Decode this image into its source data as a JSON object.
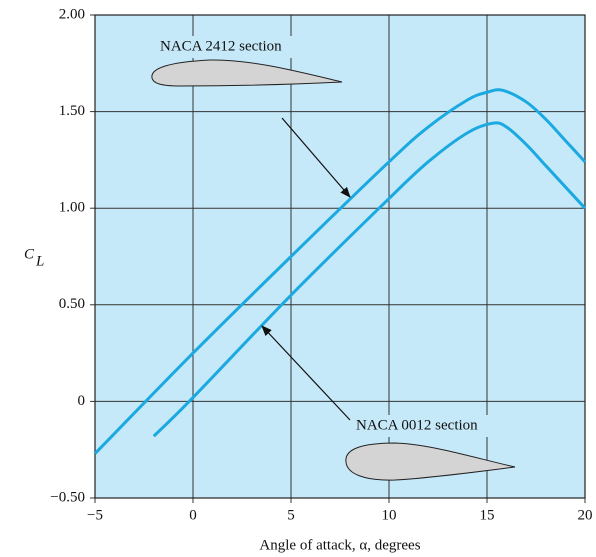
{
  "chart_data": {
    "type": "line",
    "x_label": "Angle of attack, α, degrees",
    "y_label": "C",
    "y_label_sub": "L",
    "xlim": [
      -5,
      20
    ],
    "xticks": [
      {
        "value": -5,
        "label": "−5"
      },
      0,
      5,
      10,
      15,
      20
    ],
    "ylim": [
      -0.5,
      2.0
    ],
    "yticks": [
      {
        "value": -0.5,
        "label": "−0.50"
      },
      0,
      {
        "value": 0.5,
        "label": "0.50"
      },
      {
        "value": 1.0,
        "label": "1.00"
      },
      {
        "value": 1.5,
        "label": "1.50"
      },
      {
        "value": 2.0,
        "label": "2.00"
      }
    ],
    "grid": true,
    "background": "#c6e9f9",
    "series": [
      {
        "name": "NACA 2412 section",
        "color": "#1aa9e0",
        "x": [
          -5,
          0,
          5,
          10,
          12,
          14,
          15,
          15.8,
          17,
          18,
          19,
          20
        ],
        "values": [
          -0.27,
          0.25,
          0.75,
          1.24,
          1.42,
          1.56,
          1.6,
          1.61,
          1.55,
          1.46,
          1.35,
          1.24
        ]
      },
      {
        "name": "NACA 0012 section",
        "color": "#1aa9e0",
        "x": [
          -2,
          0,
          5,
          10,
          12,
          14,
          15.3,
          16,
          17,
          18,
          19,
          20
        ],
        "values": [
          -0.18,
          0.02,
          0.55,
          1.05,
          1.24,
          1.39,
          1.44,
          1.42,
          1.33,
          1.22,
          1.11,
          1.0
        ]
      }
    ]
  }
}
